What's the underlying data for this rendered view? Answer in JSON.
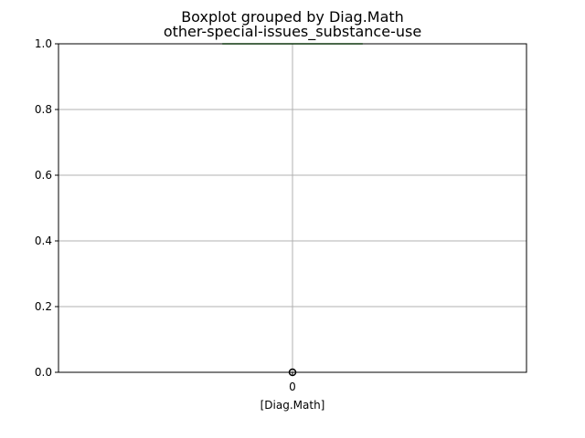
{
  "chart_data": {
    "type": "box",
    "title": "Boxplot grouped by Diag.Math",
    "subtitle": "other-special-issues_substance-use",
    "xlabel": "[Diag.Math]",
    "ylabel": "",
    "categories": [
      "0"
    ],
    "boxes": [
      {
        "category": "0",
        "whisker_low": 1.0,
        "q1": 1.0,
        "median": 1.0,
        "q3": 1.0,
        "whisker_high": 1.0,
        "outliers": [
          0.0
        ]
      }
    ],
    "ylim": [
      0,
      1
    ],
    "y_ticks": [
      0.0,
      0.2,
      0.4,
      0.6,
      0.8,
      1.0
    ],
    "y_tick_labels": [
      "0.0",
      "0.2",
      "0.4",
      "0.6",
      "0.8",
      "1.0"
    ],
    "grid": true,
    "colors": {
      "box": "#1f77b4",
      "median": "#2ca02c",
      "grid": "#b0b0b0",
      "axis": "#000000",
      "outlier": "#000000"
    }
  }
}
